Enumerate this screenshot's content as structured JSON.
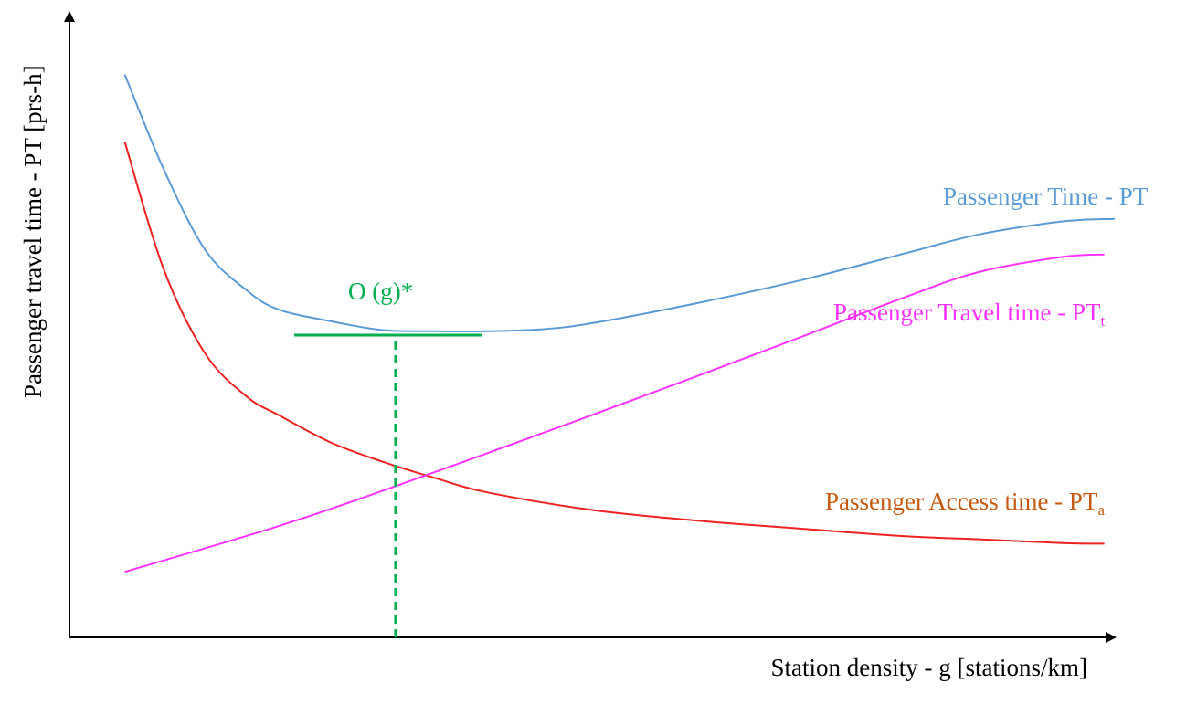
{
  "colors": {
    "axis": "#000000",
    "total": "#5b9bd5",
    "travel": "#ff33ff",
    "access": "#ee2222",
    "access_label": "#c55a11",
    "optimum": "#00b050"
  },
  "chart_data": {
    "type": "line",
    "xlabel": "Station density - g [stations/km]",
    "ylabel": "Passenger travel time - PT [prs-h]",
    "xlim": [
      0,
      100
    ],
    "ylim": [
      0,
      100
    ],
    "grid": false,
    "axis_ticks": false,
    "series": [
      {
        "key": "total",
        "label": "Passenger Time - PT",
        "label_sub": "",
        "x": [
          5.3,
          9,
          13,
          17,
          20,
          25,
          30,
          35,
          40,
          45,
          50,
          60,
          70,
          80,
          87,
          95,
          100
        ],
        "y": [
          90.1,
          75,
          62,
          55.5,
          52.5,
          50.6,
          49.2,
          49.0,
          49.0,
          49.3,
          50.3,
          53.5,
          57.2,
          61.5,
          64.5,
          66.6,
          67.0
        ]
      },
      {
        "key": "travel",
        "label": "Passenger Travel time - PT",
        "label_sub": "t",
        "x": [
          5.3,
          20,
          30,
          40,
          50,
          60,
          70,
          80,
          87,
          95,
          99
        ],
        "y": [
          10.5,
          17.8,
          23.5,
          29.5,
          35.6,
          41.8,
          48.1,
          54.5,
          58.5,
          60.9,
          61.3
        ]
      },
      {
        "key": "access",
        "label": "Passenger Access time - PT",
        "label_sub": "a",
        "x": [
          5.3,
          9,
          13,
          17,
          20,
          25,
          30,
          35,
          40,
          50,
          60,
          70,
          80,
          87,
          95,
          99
        ],
        "y": [
          79.3,
          59,
          45.4,
          38.5,
          35.6,
          31.2,
          28.1,
          25.5,
          23.2,
          20.4,
          18.7,
          17.4,
          16.2,
          15.7,
          15.1,
          15.0
        ]
      }
    ],
    "annotations": [
      {
        "type": "text",
        "text": "O (g)*"
      },
      {
        "type": "hline",
        "x0": 21.5,
        "x1": 39.5,
        "y": 48.4
      },
      {
        "type": "vline",
        "x": 31.2,
        "y0": 0,
        "y1": 48.4,
        "dashed": true
      }
    ]
  }
}
